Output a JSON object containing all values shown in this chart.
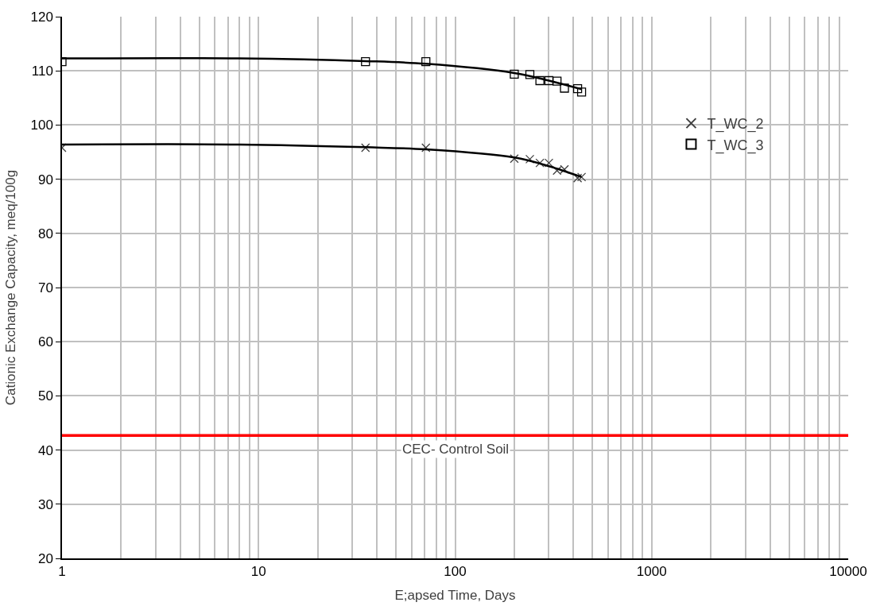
{
  "chart_data": {
    "type": "scatter",
    "xlabel": "E;apsed Time, Days",
    "ylabel": "Cationic Exchange Capacity, meq/100g",
    "log": "x",
    "xlim": [
      1,
      10000
    ],
    "xticks": [
      1,
      10,
      100,
      1000,
      10000
    ],
    "ylim": [
      20,
      120
    ],
    "yticks": [
      20,
      30,
      40,
      50,
      60,
      70,
      80,
      90,
      100,
      110,
      120
    ],
    "grid": true,
    "legend": "right",
    "series": [
      {
        "name": "T_WC_2",
        "marker": "cross",
        "color": "#404040",
        "x": [
          1,
          35,
          71,
          200,
          240,
          270,
          300,
          330,
          360,
          420,
          440
        ],
        "values": [
          95.8,
          95.8,
          95.8,
          93.8,
          93.7,
          93.0,
          93.0,
          91.6,
          91.8,
          90.2,
          90.4
        ]
      },
      {
        "name": "T_WC_3",
        "marker": "square",
        "color": "#000000",
        "x": [
          1,
          35,
          71,
          200,
          240,
          270,
          300,
          330,
          360,
          420,
          440
        ],
        "values": [
          111.7,
          111.7,
          111.7,
          109.4,
          109.3,
          108.2,
          108.2,
          108.1,
          106.8,
          106.7,
          106.1
        ]
      },
      {
        "type": "line",
        "marker": "none",
        "color": "#000000",
        "x": [
          1,
          8,
          35,
          71,
          200,
          300,
          440
        ],
        "values": [
          96.4,
          96.4,
          95.9,
          95.5,
          94.0,
          92.4,
          90.4
        ]
      },
      {
        "type": "line",
        "marker": "none",
        "color": "#000000",
        "x": [
          1,
          8,
          35,
          71,
          200,
          300,
          440
        ],
        "values": [
          112.3,
          112.3,
          111.8,
          111.3,
          109.6,
          108.2,
          106.6
        ]
      }
    ],
    "ref_lines": [
      {
        "axis": "y",
        "value": 42.7,
        "label": "CEC- Control Soil",
        "color": "#ff0000"
      }
    ]
  }
}
